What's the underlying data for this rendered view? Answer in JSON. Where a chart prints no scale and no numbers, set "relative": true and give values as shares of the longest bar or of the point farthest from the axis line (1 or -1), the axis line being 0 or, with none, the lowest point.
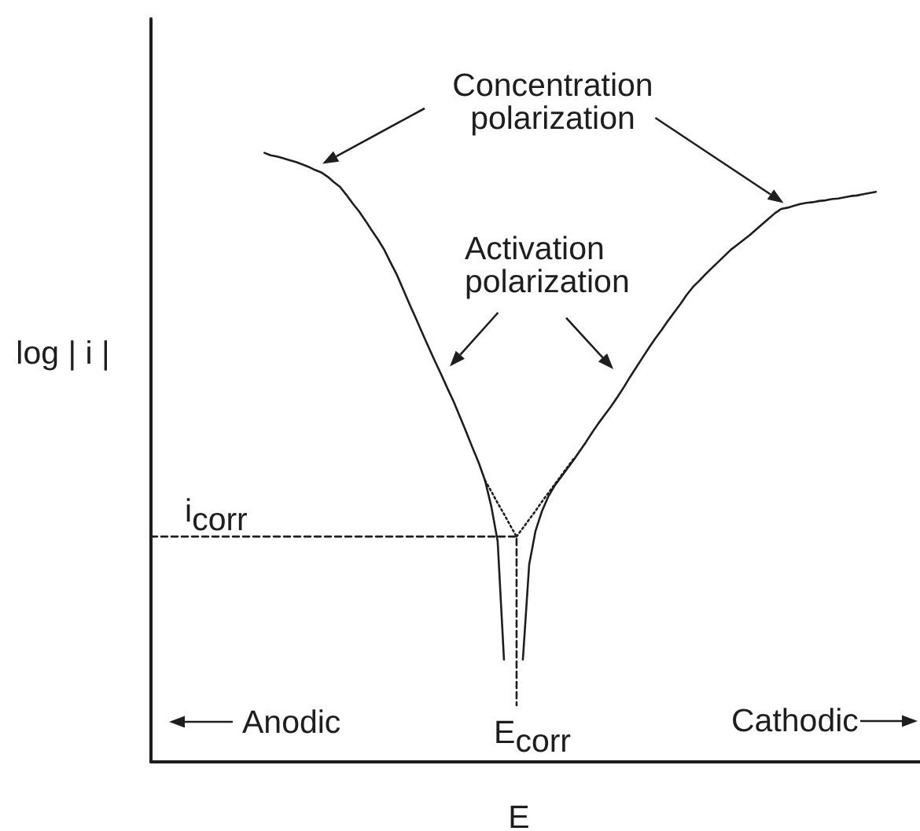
{
  "chart_data": {
    "type": "line",
    "relative": true,
    "xlabel": "E",
    "ylabel": "log | i |",
    "tick_labels": false,
    "annotations": [
      "Concentration\npolarization",
      "Activation\npolarization",
      "Anodic",
      "Cathodic",
      "i$_{corr}$",
      "E$_{corr}$"
    ],
    "categories": [
      null,
      null,
      null,
      null,
      null,
      null,
      null,
      null,
      null,
      null,
      null,
      null,
      null,
      null,
      null,
      null,
      null,
      null,
      null,
      null,
      null,
      null,
      null,
      null,
      null,
      null,
      null,
      null,
      null,
      null,
      null,
      null,
      null,
      null,
      null,
      null,
      null,
      null,
      null,
      null,
      null,
      null,
      null,
      null,
      null,
      null,
      null,
      null,
      null,
      null,
      null,
      null,
      null,
      null,
      null,
      null,
      null,
      null,
      null,
      null,
      null,
      null,
      null,
      null,
      null,
      null,
      null,
      null,
      null,
      null,
      null,
      null,
      null,
      null,
      null,
      null,
      null,
      null,
      null,
      null,
      null,
      null,
      null,
      null,
      null,
      null,
      null,
      null,
      null,
      null,
      null,
      null,
      null,
      null,
      null,
      null,
      null,
      null,
      null,
      null,
      null,
      null,
      null,
      null,
      null,
      null,
      null,
      null,
      null,
      null,
      null,
      null,
      null,
      null,
      null,
      null,
      null,
      null,
      null,
      null,
      null,
      null,
      null
    ],
    "series": [
      {
        "color": "#1e1e1e",
        "values": [
          null,
          null,
          null,
          null,
          null,
          null,
          null,
          null,
          null,
          null,
          null,
          null,
          null,
          null,
          null,
          null,
          null,
          null,
          1,
          0.996,
          0.994,
          0.991,
          0.988,
          0.985,
          0.981,
          0.977,
          0.972,
          0.968,
          0.961,
          0.952,
          0.944,
          0.931,
          0.917,
          0.904,
          0.889,
          0.873,
          0.858,
          0.841,
          0.82,
          0.8,
          0.776,
          0.752,
          0.729,
          0.705,
          0.682,
          0.659,
          0.637,
          0.614,
          0.592,
          0.567,
          0.542,
          0.516,
          0.491,
          0.462,
          0.419,
          0.362,
          0.168,
          null,
          null,
          null,
          null,
          null,
          null,
          null,
          null,
          null,
          null,
          null,
          null,
          null,
          null,
          null,
          null,
          null,
          null,
          null,
          null,
          null,
          null,
          null,
          null,
          null,
          null,
          null,
          null,
          null,
          null,
          null,
          null,
          null,
          null,
          null,
          null,
          null,
          null,
          null,
          null,
          null,
          null,
          null,
          null,
          null,
          null,
          null,
          null,
          null,
          null,
          null,
          null,
          null,
          null,
          null,
          null,
          null,
          null,
          null,
          null,
          null,
          null,
          null,
          null,
          null,
          null
        ]
      },
      {
        "color": "#1e1e1e",
        "values": [
          null,
          null,
          null,
          null,
          null,
          null,
          null,
          null,
          null,
          null,
          null,
          null,
          null,
          null,
          null,
          null,
          null,
          null,
          null,
          null,
          null,
          null,
          null,
          null,
          null,
          null,
          null,
          null,
          null,
          null,
          null,
          null,
          null,
          null,
          null,
          null,
          null,
          null,
          null,
          null,
          null,
          null,
          null,
          null,
          null,
          null,
          null,
          null,
          null,
          null,
          null,
          null,
          null,
          null,
          null,
          null,
          null,
          null,
          null,
          0.168,
          0.324,
          0.379,
          0.411,
          0.435,
          0.453,
          0.467,
          0.481,
          0.495,
          0.51,
          0.525,
          0.541,
          0.556,
          0.57,
          0.584,
          0.599,
          0.615,
          0.632,
          0.648,
          0.664,
          0.68,
          0.695,
          0.709,
          0.724,
          0.738,
          0.752,
          0.767,
          0.78,
          0.79,
          0.801,
          0.811,
          0.821,
          0.831,
          0.841,
          0.849,
          0.857,
          0.865,
          0.874,
          0.883,
          0.892,
          0.901,
          0.908,
          0.91,
          0.913,
          0.916,
          0.918,
          0.919,
          0.921,
          0.922,
          0.924,
          0.925,
          0.927,
          0.929,
          0.93,
          0.932,
          0.934,
          0.936,
          null,
          null,
          null,
          null,
          null,
          null,
          null
        ]
      },
      {
        "color": "#1e1e1e",
        "line_style": "dotted",
        "values": [
          null,
          null,
          null,
          null,
          null,
          null,
          null,
          null,
          null,
          null,
          null,
          null,
          null,
          null,
          null,
          null,
          null,
          null,
          null,
          null,
          null,
          null,
          null,
          null,
          null,
          null,
          null,
          null,
          null,
          null,
          null,
          null,
          null,
          null,
          null,
          null,
          null,
          null,
          null,
          null,
          null,
          null,
          null,
          null,
          null,
          null,
          null,
          null,
          null,
          null,
          null,
          null,
          null,
          0.462,
          0.444,
          0.425,
          0.407,
          0.388,
          0.37,
          null,
          null,
          null,
          null,
          null,
          null,
          null,
          null,
          null,
          null,
          null,
          null,
          null,
          null,
          null,
          null,
          null,
          null,
          null,
          null,
          null,
          null,
          null,
          null,
          null,
          null,
          null,
          null,
          null,
          null,
          null,
          null,
          null,
          null,
          null,
          null,
          null,
          null,
          null,
          null,
          null,
          null,
          null,
          null,
          null,
          null,
          null,
          null,
          null,
          null,
          null,
          null,
          null,
          null,
          null,
          null,
          null,
          null,
          null,
          null,
          null,
          null,
          null,
          null
        ]
      },
      {
        "color": "#1e1e1e",
        "line_style": "dotted",
        "values": [
          null,
          null,
          null,
          null,
          null,
          null,
          null,
          null,
          null,
          null,
          null,
          null,
          null,
          null,
          null,
          null,
          null,
          null,
          null,
          null,
          null,
          null,
          null,
          null,
          null,
          null,
          null,
          null,
          null,
          null,
          null,
          null,
          null,
          null,
          null,
          null,
          null,
          null,
          null,
          null,
          null,
          null,
          null,
          null,
          null,
          null,
          null,
          null,
          null,
          null,
          null,
          null,
          null,
          null,
          null,
          null,
          null,
          null,
          0.37,
          0.384,
          0.398,
          0.412,
          0.427,
          0.441,
          0.455,
          0.469,
          0.483,
          0.497,
          null,
          null,
          null,
          null,
          null,
          null,
          null,
          null,
          null,
          null,
          null,
          null,
          null,
          null,
          null,
          null,
          null,
          null,
          null,
          null,
          null,
          null,
          null,
          null,
          null,
          null,
          null,
          null,
          null,
          null,
          null,
          null,
          null,
          null,
          null,
          null,
          null,
          null,
          null,
          null,
          null,
          null,
          null,
          null,
          null,
          null,
          null,
          null,
          null,
          null,
          null,
          null,
          null,
          null,
          null
        ]
      },
      {
        "type": "step",
        "color": "#1e1e1e",
        "line_style": "dashed",
        "values": [
          0.37,
          0.37,
          0.37,
          0.37,
          0.37,
          0.37,
          0.37,
          0.37,
          0.37,
          0.37,
          0.37,
          0.37,
          0.37,
          0.37,
          0.37,
          0.37,
          0.37,
          0.37,
          0.37,
          0.37,
          0.37,
          0.37,
          0.37,
          0.37,
          0.37,
          0.37,
          0.37,
          0.37,
          0.37,
          0.37,
          0.37,
          0.37,
          0.37,
          0.37,
          0.37,
          0.37,
          0.37,
          0.37,
          0.37,
          0.37,
          0.37,
          0.37,
          0.37,
          0.37,
          0.37,
          0.37,
          0.37,
          0.37,
          0.37,
          0.37,
          0.37,
          0.37,
          0.37,
          0.37,
          0.37,
          0.37,
          0.37,
          0.37,
          0.093,
          null,
          null,
          null,
          null,
          null,
          null,
          null,
          null,
          null,
          null,
          null,
          null,
          null,
          null,
          null,
          null,
          null,
          null,
          null,
          null,
          null,
          null,
          null,
          null,
          null,
          null,
          null,
          null,
          null,
          null,
          null,
          null,
          null,
          null,
          null,
          null,
          null,
          null,
          null,
          null,
          null,
          null,
          null,
          null,
          null,
          null,
          null,
          null,
          null,
          null,
          null,
          null,
          null,
          null,
          null,
          null,
          null,
          null,
          null,
          null,
          null,
          null,
          null,
          null
        ]
      }
    ]
  }
}
